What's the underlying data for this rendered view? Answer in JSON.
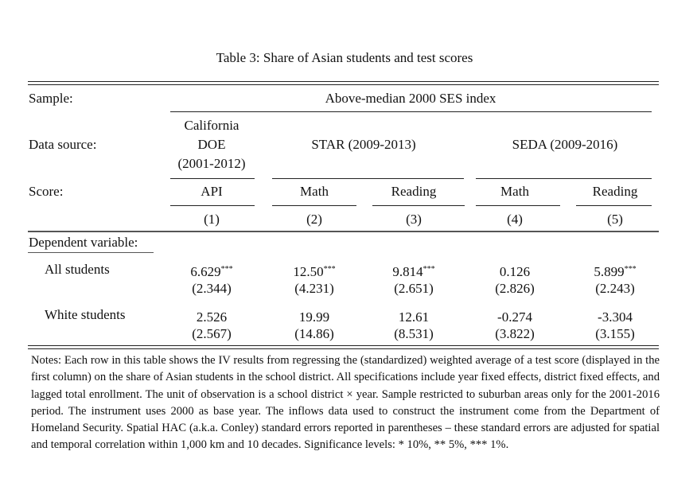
{
  "title": "Table 3: Share of Asian students and test scores",
  "rows_labels": {
    "sample": "Sample:",
    "data_source": "Data source:",
    "score": "Score:",
    "dependent_variable": "Dependent variable:"
  },
  "sample_value": "Above-median 2000 SES index",
  "data_sources": {
    "california": [
      "California",
      "DOE",
      "(2001-2012)"
    ],
    "star": "STAR (2009-2013)",
    "seda": "SEDA (2009-2016)"
  },
  "scores": [
    "API",
    "Math",
    "Reading",
    "Math",
    "Reading"
  ],
  "column_numbers": [
    "(1)",
    "(2)",
    "(3)",
    "(4)",
    "(5)"
  ],
  "rows": [
    {
      "label": "All students",
      "coef": [
        "6.629",
        "12.50",
        "9.814",
        "0.126",
        "5.899"
      ],
      "stars": [
        "***",
        "***",
        "***",
        "",
        "***"
      ],
      "se": [
        "(2.344)",
        "(4.231)",
        "(2.651)",
        "(2.826)",
        "(2.243)"
      ]
    },
    {
      "label": "White students",
      "coef": [
        "2.526",
        "19.99",
        "12.61",
        "-0.274",
        "-3.304"
      ],
      "stars": [
        "",
        "",
        "",
        "",
        ""
      ],
      "se": [
        "(2.567)",
        "(14.86)",
        "(8.531)",
        "(3.822)",
        "(3.155)"
      ]
    }
  ],
  "notes": "Notes: Each row in this table shows the IV results from regressing the (standardized) weighted average of a test score (displayed in the first column) on the share of Asian students in the school district. All specifications include year fixed effects, district fixed effects, and lagged total enrollment. The unit of observation is a school district × year. Sample restricted to suburban areas only for the 2001-2016 period. The instrument uses 2000 as base year. The inflows data used to construct the instrument come from the Department of Homeland Security. Spatial HAC (a.k.a. Conley) standard errors reported in parentheses – these standard errors are adjusted for spatial and temporal correlation within 1,000 km and 10 decades. Significance levels: * 10%, ** 5%, *** 1%."
}
